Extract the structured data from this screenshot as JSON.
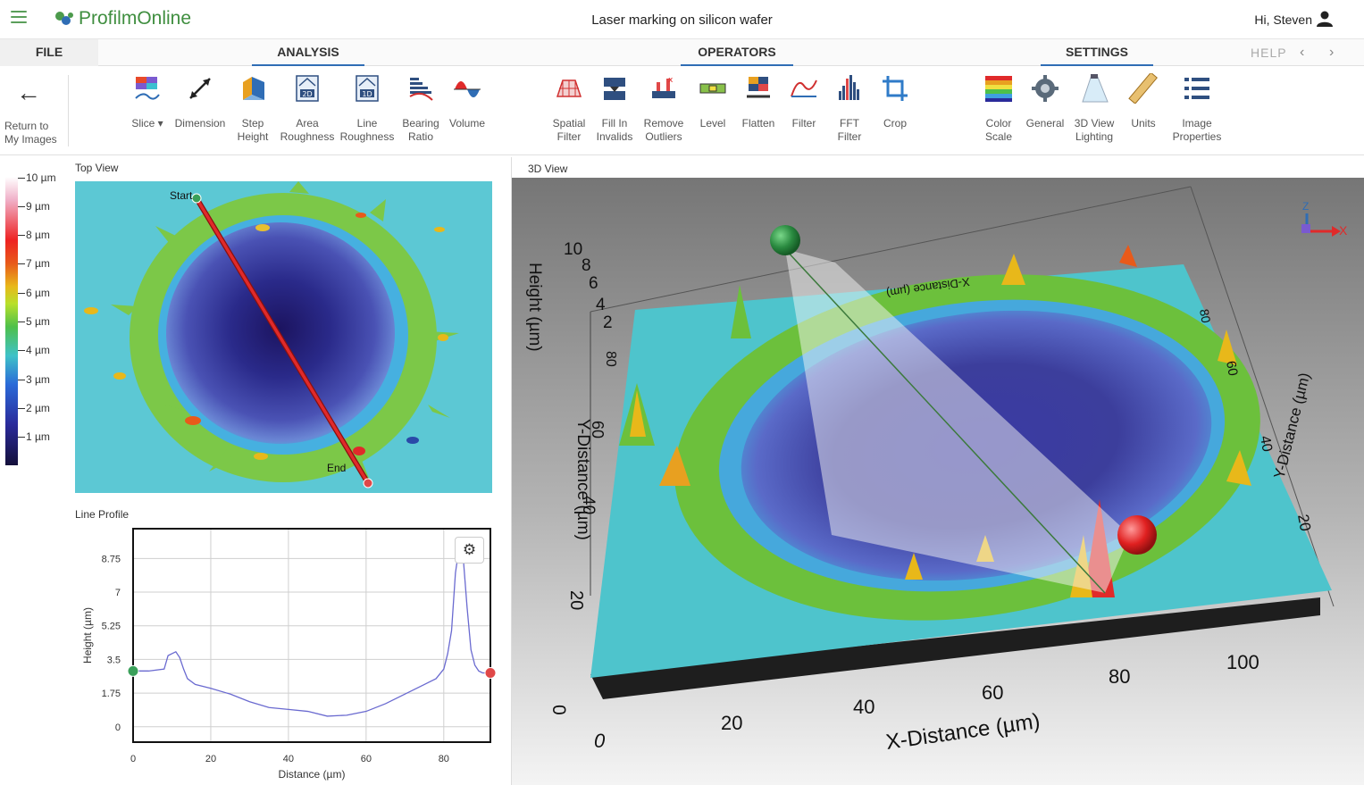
{
  "app": {
    "brand": "ProfilmOnline",
    "document_title": "Laser marking on silicon wafer",
    "greeting": "Hi, Steven",
    "icons": {
      "menu": "hamburger-icon",
      "user": "user-icon",
      "logo": "profilm-logo-icon"
    }
  },
  "menu": {
    "file": "FILE",
    "analysis": "ANALYSIS",
    "operators": "OPERATORS",
    "settings": "SETTINGS",
    "help": "HELP",
    "prev": "‹",
    "next": "›"
  },
  "toolbar": {
    "return_label_line1": "Return to",
    "return_label_line2": "My Images",
    "analysis_tools": [
      {
        "l1": "Slice ▾",
        "l2": "",
        "icon": "slice-icon"
      },
      {
        "l1": "Dimension",
        "l2": "",
        "icon": "dimension-icon"
      },
      {
        "l1": "Step",
        "l2": "Height",
        "icon": "step-height-icon"
      },
      {
        "l1": "Area",
        "l2": "Roughness",
        "icon": "area-roughness-icon"
      },
      {
        "l1": "Line",
        "l2": "Roughness",
        "icon": "line-roughness-icon"
      },
      {
        "l1": "Bearing",
        "l2": "Ratio",
        "icon": "bearing-ratio-icon"
      },
      {
        "l1": "Volume",
        "l2": "",
        "icon": "volume-icon"
      }
    ],
    "operator_tools": [
      {
        "l1": "Spatial",
        "l2": "Filter",
        "icon": "spatial-filter-icon"
      },
      {
        "l1": "Fill In",
        "l2": "Invalids",
        "icon": "fill-invalids-icon"
      },
      {
        "l1": "Remove",
        "l2": "Outliers",
        "icon": "remove-outliers-icon"
      },
      {
        "l1": "Level",
        "l2": "",
        "icon": "level-icon"
      },
      {
        "l1": "Flatten",
        "l2": "",
        "icon": "flatten-icon"
      },
      {
        "l1": "Filter",
        "l2": "",
        "icon": "filter-icon"
      },
      {
        "l1": "FFT",
        "l2": "Filter",
        "icon": "fft-filter-icon"
      },
      {
        "l1": "Crop",
        "l2": "",
        "icon": "crop-icon"
      }
    ],
    "settings_tools": [
      {
        "l1": "Color",
        "l2": "Scale",
        "icon": "color-scale-icon"
      },
      {
        "l1": "General",
        "l2": "",
        "icon": "general-settings-icon"
      },
      {
        "l1": "3D View",
        "l2": "Lighting",
        "icon": "lighting-icon"
      },
      {
        "l1": "Units",
        "l2": "",
        "icon": "units-ruler-icon"
      },
      {
        "l1": "Image",
        "l2": "Properties",
        "icon": "image-properties-icon"
      }
    ]
  },
  "color_scale": {
    "labels": [
      "10 µm",
      "9 µm",
      "8 µm",
      "7 µm",
      "6 µm",
      "5 µm",
      "4 µm",
      "3 µm",
      "2 µm",
      "1 µm"
    ]
  },
  "top_view": {
    "title": "Top View",
    "start_label": "Start",
    "end_label": "End"
  },
  "line_profile": {
    "title": "Line Profile",
    "settings_icon": "gear-icon"
  },
  "view3d": {
    "title": "3D View",
    "z_label": "Height (µm)",
    "z_ticks": [
      "10",
      "8",
      "6",
      "4",
      "2",
      "0"
    ],
    "x_label": "X-Distance (µm)",
    "x_ticks": [
      "0",
      "20",
      "40",
      "60",
      "80",
      "100"
    ],
    "y_label": "Y-Distance (µm)",
    "y_ticks_left": [
      "0",
      "20",
      "40",
      "60",
      "80"
    ],
    "y_ticks_right": [
      "20",
      "40",
      "60",
      "80"
    ],
    "top_x_label": "X-Distance (µm)",
    "axis_gizmo": {
      "z": "Z",
      "x": "X"
    }
  },
  "chart_data": {
    "type": "line",
    "title": "Line Profile",
    "xlabel": "Distance (µm)",
    "ylabel": "Height (µm)",
    "xlim": [
      0,
      92
    ],
    "ylim": [
      -0.8,
      10.3
    ],
    "x_ticks": [
      0,
      20,
      40,
      60,
      80
    ],
    "y_ticks": [
      0,
      1.75,
      3.5,
      5.25,
      7,
      8.75
    ],
    "grid": true,
    "series": [
      {
        "color": "#6a6ad0",
        "x": [
          0,
          4,
          8,
          9,
          10,
          11,
          12,
          13,
          14,
          16,
          20,
          25,
          30,
          35,
          40,
          45,
          50,
          55,
          60,
          65,
          70,
          75,
          78,
          80,
          81,
          82,
          83,
          84,
          85,
          86,
          87,
          88,
          89,
          90,
          92
        ],
        "y": [
          2.9,
          2.9,
          3.0,
          3.7,
          3.8,
          3.9,
          3.6,
          3.0,
          2.5,
          2.2,
          2.0,
          1.7,
          1.3,
          1.0,
          0.9,
          0.8,
          0.55,
          0.6,
          0.8,
          1.2,
          1.7,
          2.2,
          2.5,
          3.0,
          3.8,
          5.0,
          8.0,
          9.4,
          8.8,
          6.2,
          4.0,
          3.2,
          2.9,
          2.8,
          2.8
        ]
      }
    ],
    "markers": [
      {
        "x": 0,
        "y": 2.9,
        "color": "#3aa05a"
      },
      {
        "x": 92,
        "y": 2.8,
        "color": "#e04848"
      }
    ]
  }
}
